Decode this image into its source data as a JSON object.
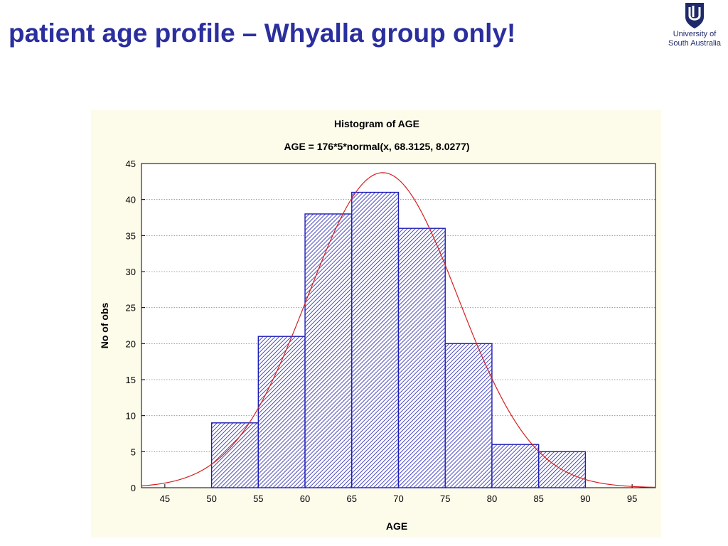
{
  "slide": {
    "title": "patient age profile – Whyalla group only!"
  },
  "logo": {
    "line1": "University of",
    "line2": "South Australia",
    "icon": "unisa-shield-icon"
  },
  "colors": {
    "title": "#2b2f9e",
    "bar_stroke": "#1e1eb4",
    "bar_hatch": "#1e1eb4",
    "curve": "#d42020",
    "panel_bg": "#fdfbea"
  },
  "chart_data": {
    "type": "bar",
    "title": "Histogram of AGE",
    "subtitle": "AGE = 176*5*normal(x, 68.3125, 8.0277)",
    "xlabel": "AGE",
    "ylabel": "No of obs",
    "xlim": [
      42.5,
      97.5
    ],
    "ylim": [
      0,
      45
    ],
    "xticks": [
      45,
      50,
      55,
      60,
      65,
      70,
      75,
      80,
      85,
      90,
      95
    ],
    "yticks": [
      0,
      5,
      10,
      15,
      20,
      25,
      30,
      35,
      40,
      45
    ],
    "bins": [
      {
        "x0": 50,
        "x1": 55,
        "value": 9
      },
      {
        "x0": 55,
        "x1": 60,
        "value": 21
      },
      {
        "x0": 60,
        "x1": 65,
        "value": 38
      },
      {
        "x0": 65,
        "x1": 70,
        "value": 41
      },
      {
        "x0": 70,
        "x1": 75,
        "value": 36
      },
      {
        "x0": 75,
        "x1": 80,
        "value": 20
      },
      {
        "x0": 80,
        "x1": 85,
        "value": 6
      },
      {
        "x0": 85,
        "x1": 90,
        "value": 5
      }
    ],
    "fit_curve": {
      "n": 176,
      "bin_width": 5,
      "mean": 68.3125,
      "sd": 8.0277
    },
    "grid": true
  }
}
